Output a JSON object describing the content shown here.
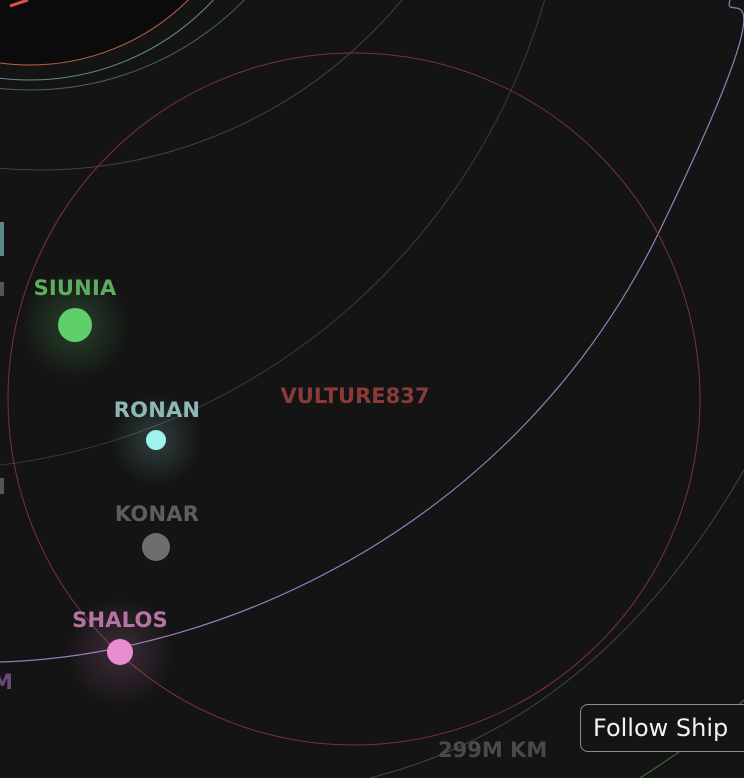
{
  "colors": {
    "background": "#141414",
    "siunia": "#5fcf6a",
    "ronan": "#9ff3ec",
    "konar": "#6e6e6e",
    "shalos": "#e98dd0",
    "ship": "#7a3434",
    "orbit_purple": "#b48fd8",
    "orbit_teal": "#7fc8be",
    "orbit_gray": "#555555",
    "zone_red": "#7a3434"
  },
  "bodies": [
    {
      "id": "siunia",
      "name": "SIUNIA",
      "color": "#5fcf6a",
      "label_color": "#5cae5f"
    },
    {
      "id": "ronan",
      "name": "RONAN",
      "color": "#9ff3ec",
      "label_color": "#8fb8b4"
    },
    {
      "id": "konar",
      "name": "KONAR",
      "color": "#6e6e6e",
      "label_color": "#5e5e5e"
    },
    {
      "id": "shalos",
      "name": "SHALOS",
      "color": "#e98dd0",
      "label_color": "#b573a4"
    }
  ],
  "ship": {
    "name": "VULTURE837",
    "color": "#8a3a3a"
  },
  "controls": {
    "follow_label": "Follow Ship"
  },
  "scale": {
    "label": "299M KM",
    "color": "#4a4a4a"
  },
  "edge_text": {
    "label": "M",
    "color": "#6b4a78"
  }
}
